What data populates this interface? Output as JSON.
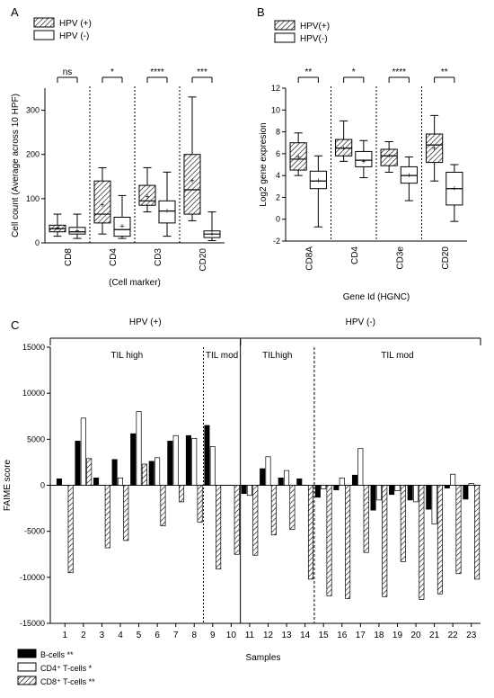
{
  "colors": {
    "ink": "#000000",
    "hatch_fill": "#ffffff",
    "open_fill": "#ffffff",
    "solid": "#000000"
  },
  "chart_data": [
    {
      "panel_label": "A",
      "type": "box",
      "ylabel": "Cell count (Average across 10 HPF)",
      "xlabel": "(Cell marker)",
      "ylim": [
        0,
        350
      ],
      "yticks": [
        0,
        100,
        200,
        300
      ],
      "categories": [
        "CD8",
        "CD4",
        "CD3",
        "CD20"
      ],
      "legend": [
        "HPV (+)",
        "HPV (-)"
      ],
      "significance": [
        "ns",
        "*",
        "****",
        "***"
      ],
      "series": [
        {
          "name": "HPV (+)",
          "pattern": "hatch",
          "boxes": [
            {
              "min": 15,
              "q1": 25,
              "median": 32,
              "q3": 40,
              "max": 65,
              "mean": 34
            },
            {
              "min": 20,
              "q1": 45,
              "median": 65,
              "q3": 140,
              "max": 170,
              "mean": 85
            },
            {
              "min": 70,
              "q1": 85,
              "median": 95,
              "q3": 130,
              "max": 170,
              "mean": 105
            },
            {
              "min": 50,
              "q1": 65,
              "median": 120,
              "q3": 200,
              "max": 330,
              "mean": 140
            }
          ]
        },
        {
          "name": "HPV (-)",
          "pattern": "open",
          "boxes": [
            {
              "min": 10,
              "q1": 20,
              "median": 25,
              "q3": 35,
              "max": 65,
              "mean": 27
            },
            {
              "min": 10,
              "q1": 15,
              "median": 30,
              "q3": 58,
              "max": 107,
              "mean": 38
            },
            {
              "min": 15,
              "q1": 45,
              "median": 72,
              "q3": 95,
              "max": 160,
              "mean": 72
            },
            {
              "min": 5,
              "q1": 12,
              "median": 20,
              "q3": 27,
              "max": 70,
              "mean": 20
            }
          ]
        }
      ]
    },
    {
      "panel_label": "B",
      "type": "box",
      "ylabel": "Log2 gene expresion",
      "xlabel": "Gene Id (HGNC)",
      "ylim": [
        -2,
        12
      ],
      "yticks": [
        -2,
        0,
        2,
        4,
        6,
        8,
        10,
        12
      ],
      "categories": [
        "CD8A",
        "CD4",
        "CD3e",
        "CD20"
      ],
      "legend": [
        "HPV(+)",
        "HPV(-)"
      ],
      "significance": [
        "**",
        "*",
        "****",
        "**"
      ],
      "series": [
        {
          "name": "HPV(+)",
          "pattern": "hatch",
          "boxes": [
            {
              "min": 4.0,
              "q1": 4.5,
              "median": 5.5,
              "q3": 7.0,
              "max": 7.9,
              "mean": 5.7
            },
            {
              "min": 5.3,
              "q1": 5.8,
              "median": 6.5,
              "q3": 7.3,
              "max": 9.0,
              "mean": 6.5
            },
            {
              "min": 4.3,
              "q1": 4.9,
              "median": 5.8,
              "q3": 6.4,
              "max": 7.1,
              "mean": 5.8
            },
            {
              "min": 3.5,
              "q1": 5.2,
              "median": 6.8,
              "q3": 7.8,
              "max": 9.5,
              "mean": 6.5
            }
          ]
        },
        {
          "name": "HPV(-)",
          "pattern": "open",
          "boxes": [
            {
              "min": -0.7,
              "q1": 2.8,
              "median": 3.5,
              "q3": 4.4,
              "max": 5.8,
              "mean": 3.5
            },
            {
              "min": 3.8,
              "q1": 4.8,
              "median": 5.4,
              "q3": 6.2,
              "max": 7.2,
              "mean": 5.3
            },
            {
              "min": 1.7,
              "q1": 3.3,
              "median": 4.0,
              "q3": 4.8,
              "max": 5.7,
              "mean": 4.0
            },
            {
              "min": -0.2,
              "q1": 1.3,
              "median": 2.8,
              "q3": 4.3,
              "max": 5.0,
              "mean": 2.8
            }
          ]
        }
      ]
    },
    {
      "panel_label": "C",
      "type": "bar",
      "ylabel": "FAIME score",
      "xlabel": "Samples",
      "ylim": [
        -15000,
        15000
      ],
      "yticks": [
        -15000,
        -10000,
        -5000,
        0,
        5000,
        10000,
        15000
      ],
      "categories": [
        "1",
        "2",
        "3",
        "4",
        "5",
        "6",
        "7",
        "8",
        "9",
        "10",
        "11",
        "12",
        "13",
        "14",
        "15",
        "16",
        "17",
        "18",
        "19",
        "20",
        "21",
        "22",
        "23"
      ],
      "groups": [
        {
          "label": "HPV (+)",
          "from": 1,
          "to": 10
        },
        {
          "label": "HPV (-)",
          "from": 11,
          "to": 23
        }
      ],
      "subgroups": [
        {
          "label": "TIL high",
          "from": 1,
          "to": 8
        },
        {
          "label": "TIL mod",
          "from": 9,
          "to": 10
        },
        {
          "label": "TILhigh",
          "from": 11,
          "to": 14
        },
        {
          "label": "TIL mod",
          "from": 15,
          "to": 23
        }
      ],
      "legend": [
        {
          "label": "B-cells **",
          "pattern": "solid"
        },
        {
          "label": "CD4⁺ T-cells *",
          "pattern": "open"
        },
        {
          "label": "CD8⁺ T-cells **",
          "pattern": "hatch"
        }
      ],
      "series": [
        {
          "name": "B-cells",
          "pattern": "solid",
          "values": [
            700,
            4800,
            800,
            2800,
            5600,
            2600,
            4800,
            5400,
            6500,
            0,
            -900,
            1800,
            800,
            700,
            -1300,
            -500,
            1100,
            -2700,
            -1000,
            -1600,
            -2600,
            -300,
            -1500
          ]
        },
        {
          "name": "CD4+ T-cells",
          "pattern": "open",
          "values": [
            0,
            7300,
            0,
            800,
            8000,
            3000,
            5400,
            5100,
            4200,
            0,
            -1100,
            3100,
            1600,
            0,
            -400,
            800,
            4000,
            -1600,
            -600,
            -1800,
            -4200,
            1200,
            200
          ]
        },
        {
          "name": "CD8+ T-cells",
          "pattern": "hatch",
          "values": [
            -9500,
            2900,
            -6800,
            -6000,
            2300,
            -4400,
            -1800,
            -4000,
            -9100,
            -7500,
            -7600,
            -5400,
            -4800,
            -10200,
            -12000,
            -12300,
            -7300,
            -12100,
            -8300,
            -12400,
            -11800,
            -9600,
            -10200
          ]
        }
      ]
    }
  ]
}
